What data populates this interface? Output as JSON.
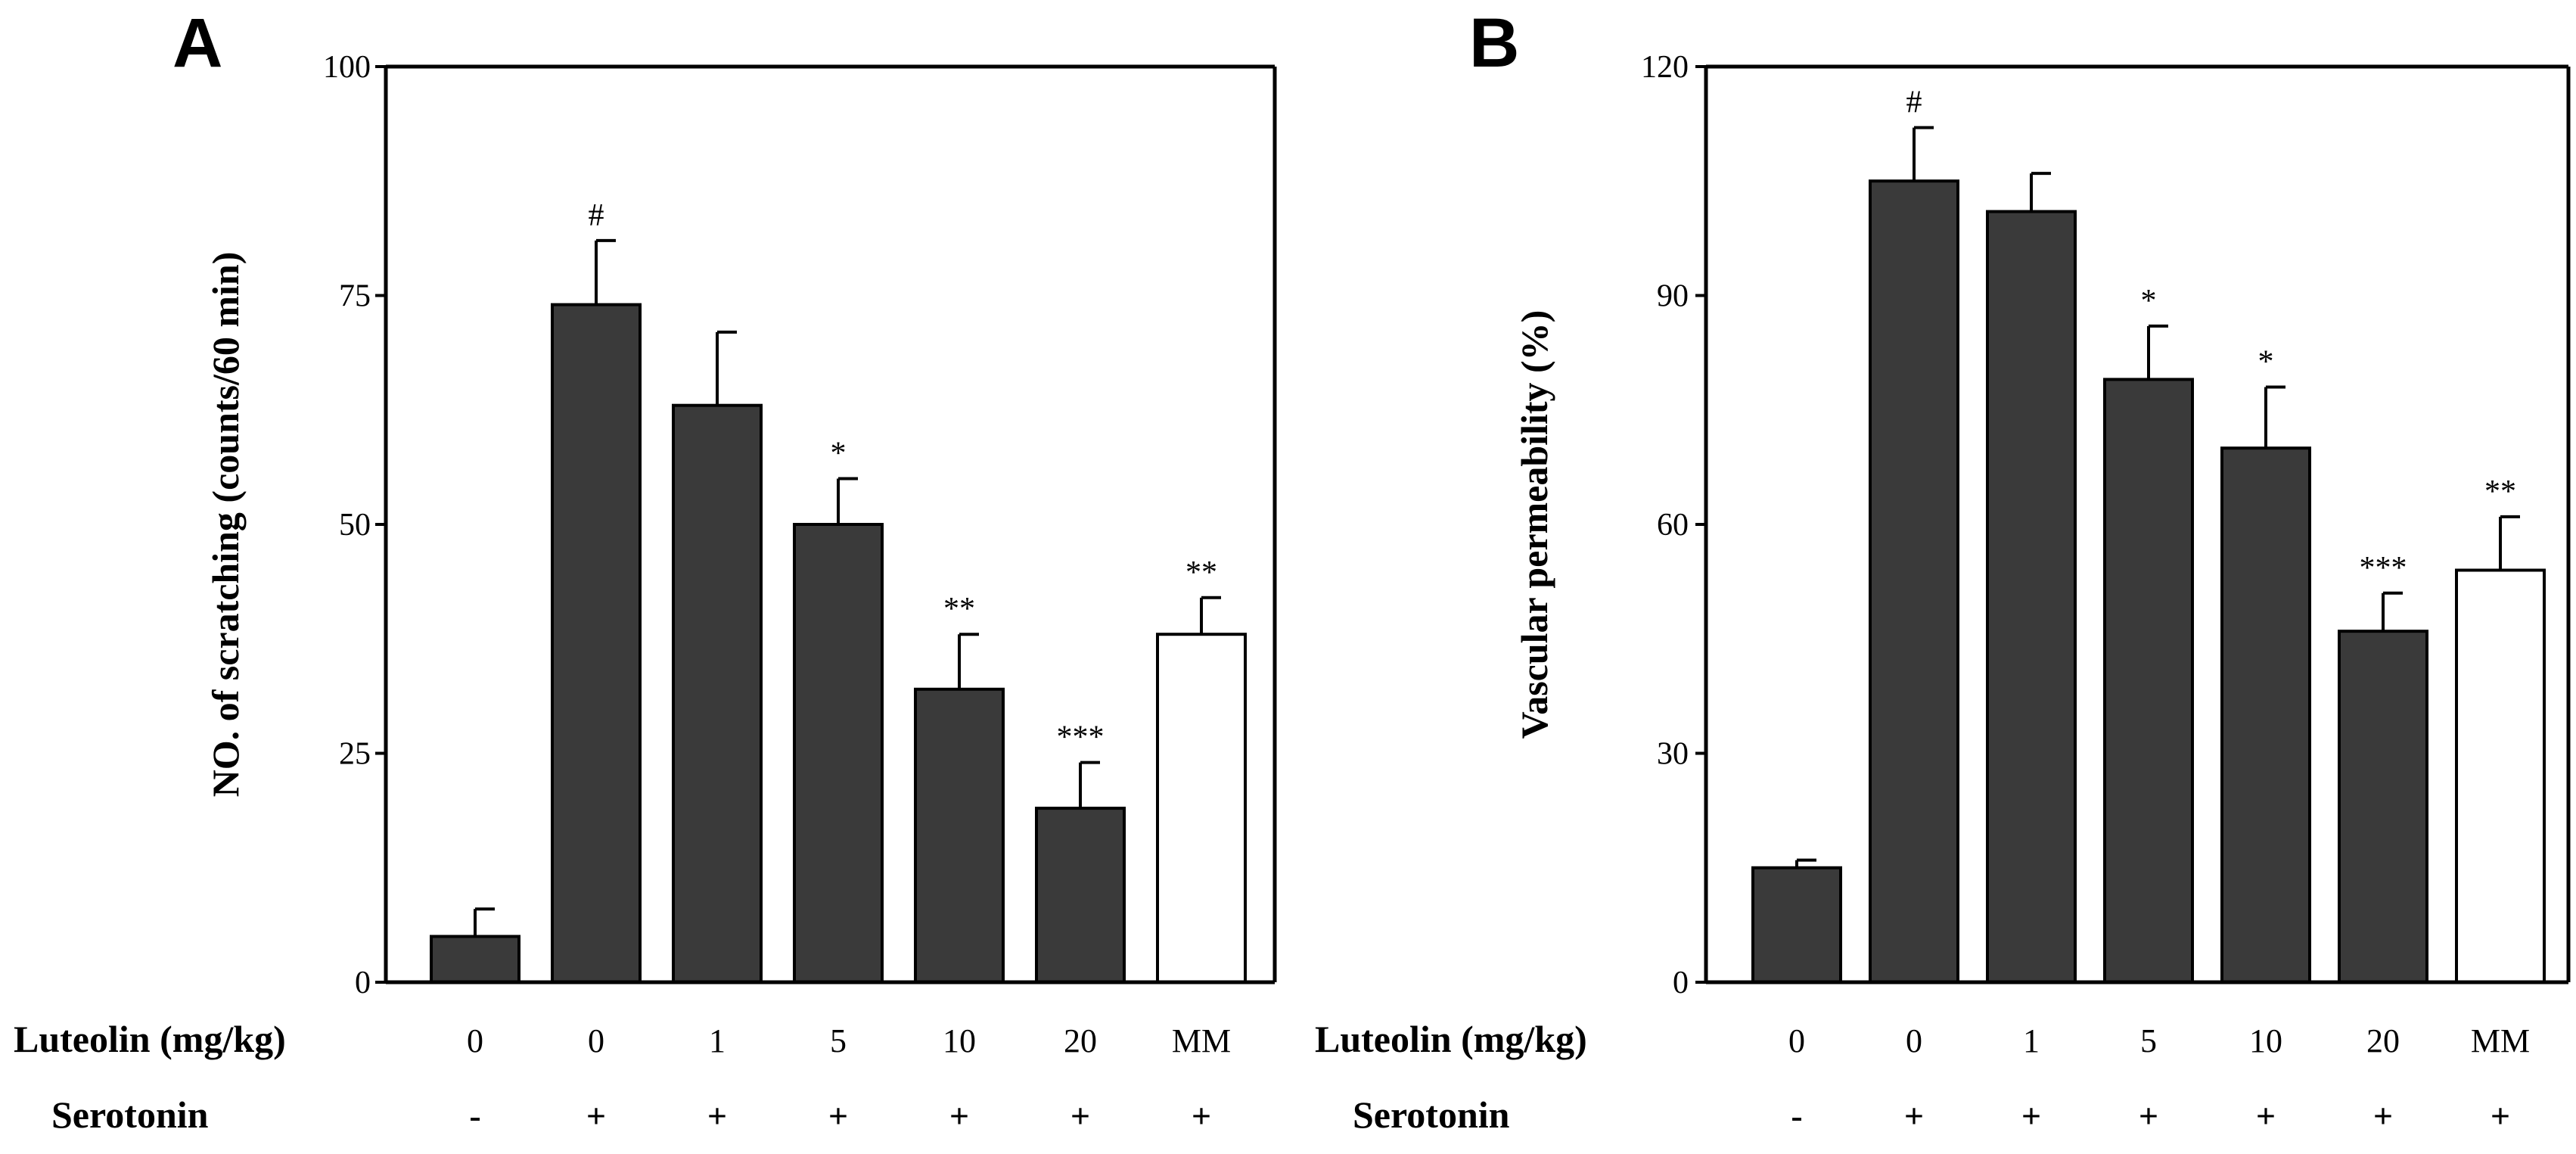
{
  "colors": {
    "bar": "#3a3a3a",
    "highlight": "#ffffff",
    "axis": "#000000",
    "background": "#ffffff"
  },
  "chart_data": [
    {
      "panel": "A",
      "type": "bar",
      "title": "",
      "ylabel": "NO. of scratching (counts/60 min)",
      "xlabel": "",
      "ylim": [
        0,
        100
      ],
      "yticks": [
        0,
        25,
        50,
        75,
        100
      ],
      "grid": false,
      "categories": [
        "0",
        "0",
        "1",
        "5",
        "10",
        "20",
        "MM"
      ],
      "values": [
        5,
        74,
        63,
        50,
        32,
        19,
        38
      ],
      "errors": [
        3,
        7,
        8,
        5,
        6,
        5,
        4
      ],
      "annotations": [
        "",
        "#",
        "",
        "*",
        "**",
        "***",
        "**"
      ],
      "highlight_index": 6,
      "row_labels": [
        "Luteolin (mg/kg)",
        "Serotonin"
      ],
      "luteolin": [
        "0",
        "0",
        "1",
        "5",
        "10",
        "20",
        "MM"
      ],
      "serotonin": [
        "-",
        "+",
        "+",
        "+",
        "+",
        "+",
        "+"
      ]
    },
    {
      "panel": "B",
      "type": "bar",
      "title": "",
      "ylabel": "Vascular permeability (%)",
      "xlabel": "",
      "ylim": [
        0,
        120
      ],
      "yticks": [
        0,
        30,
        60,
        90,
        120
      ],
      "grid": false,
      "categories": [
        "0",
        "0",
        "1",
        "5",
        "10",
        "20",
        "MM"
      ],
      "values": [
        15,
        105,
        101,
        79,
        70,
        46,
        54
      ],
      "errors": [
        1,
        7,
        5,
        7,
        8,
        5,
        7
      ],
      "annotations": [
        "",
        "#",
        "",
        "*",
        "*",
        "***",
        "**"
      ],
      "highlight_index": 6,
      "row_labels": [
        "Luteolin (mg/kg)",
        "Serotonin"
      ],
      "luteolin": [
        "0",
        "0",
        "1",
        "5",
        "10",
        "20",
        "MM"
      ],
      "serotonin": [
        "-",
        "+",
        "+",
        "+",
        "+",
        "+",
        "+"
      ]
    }
  ]
}
